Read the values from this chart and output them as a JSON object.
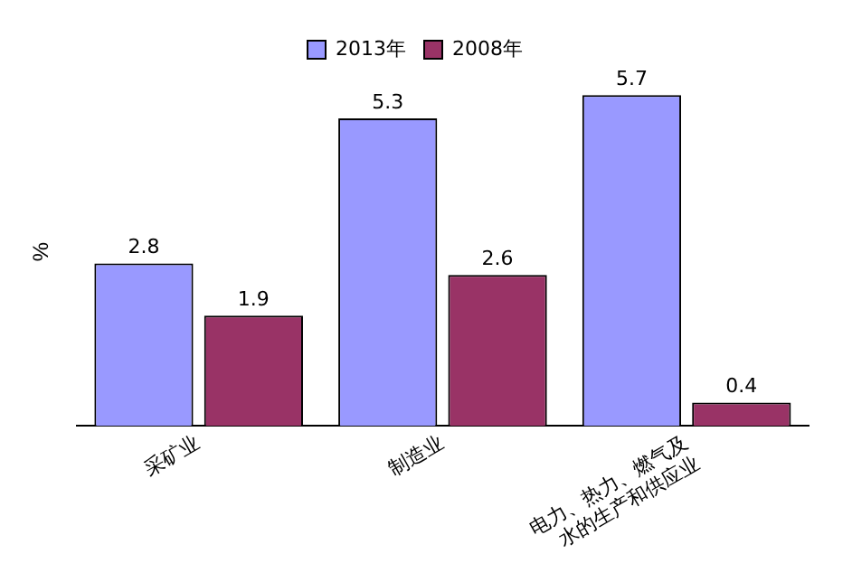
{
  "chart_data": {
    "type": "bar",
    "ylabel": "%",
    "categories": [
      "采矿业",
      "制造业",
      "电力、热力、燃气及水的生产和供应业"
    ],
    "series": [
      {
        "name": "2013年",
        "color": "#9999ff",
        "values": [
          2.8,
          5.3,
          5.7
        ]
      },
      {
        "name": "2008年",
        "color": "#993366",
        "values": [
          1.9,
          2.6,
          0.4
        ]
      }
    ],
    "data_labels": true,
    "legend": "top",
    "grid": false,
    "tick_labels": "x"
  }
}
